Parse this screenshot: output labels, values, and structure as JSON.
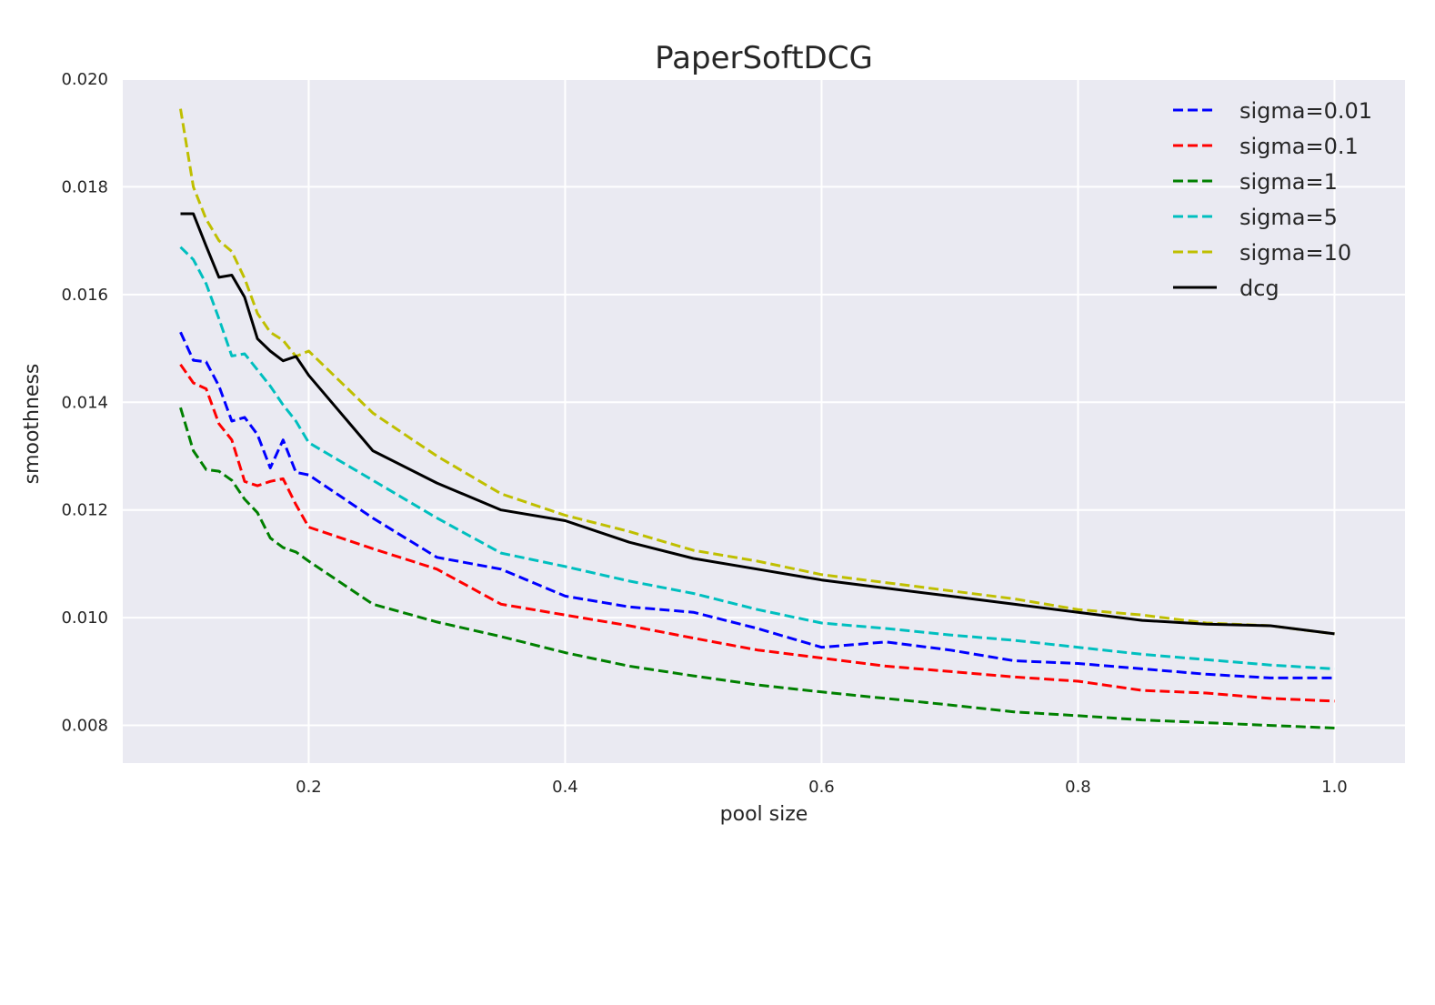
{
  "chart_data": {
    "type": "line",
    "title": "PaperSoftDCG",
    "xlabel": "pool size",
    "ylabel": "smoothness",
    "xlim": [
      0.055,
      1.055
    ],
    "ylim": [
      0.0073,
      0.02
    ],
    "xticks": [
      0.2,
      0.4,
      0.6,
      0.8,
      1.0
    ],
    "xtick_labels": [
      "0.2",
      "0.4",
      "0.6",
      "0.8",
      "1.0"
    ],
    "yticks": [
      0.008,
      0.01,
      0.012,
      0.014,
      0.016,
      0.018,
      0.02
    ],
    "ytick_labels": [
      "0.008",
      "0.010",
      "0.012",
      "0.014",
      "0.016",
      "0.018",
      "0.020"
    ],
    "grid": true,
    "background": "#eaeaf2",
    "legend_position": "top-right",
    "x": [
      0.1,
      0.11,
      0.12,
      0.13,
      0.14,
      0.15,
      0.16,
      0.17,
      0.18,
      0.19,
      0.2,
      0.25,
      0.3,
      0.35,
      0.4,
      0.45,
      0.5,
      0.55,
      0.6,
      0.65,
      0.7,
      0.75,
      0.8,
      0.85,
      0.9,
      0.95,
      1.0
    ],
    "series": [
      {
        "name": "sigma=0.01",
        "color": "#0000ff",
        "style": "dashed",
        "values": [
          0.0153,
          0.01478,
          0.01475,
          0.0143,
          0.01365,
          0.01372,
          0.0134,
          0.01278,
          0.0133,
          0.0127,
          0.01265,
          0.01185,
          0.01112,
          0.0109,
          0.0104,
          0.0102,
          0.0101,
          0.0098,
          0.00945,
          0.00955,
          0.0094,
          0.0092,
          0.00915,
          0.00905,
          0.00895,
          0.00888,
          0.00888
        ]
      },
      {
        "name": "sigma=0.1",
        "color": "#ff0000",
        "style": "dashed",
        "values": [
          0.0147,
          0.01436,
          0.01425,
          0.0136,
          0.0133,
          0.01253,
          0.01245,
          0.01253,
          0.01258,
          0.0121,
          0.01168,
          0.01128,
          0.0109,
          0.01025,
          0.01005,
          0.00985,
          0.00962,
          0.0094,
          0.00925,
          0.0091,
          0.009,
          0.0089,
          0.00882,
          0.00865,
          0.0086,
          0.0085,
          0.00845
        ]
      },
      {
        "name": "sigma=1",
        "color": "#008000",
        "style": "dashed",
        "values": [
          0.0139,
          0.0131,
          0.01275,
          0.01272,
          0.01255,
          0.0122,
          0.01195,
          0.01148,
          0.0113,
          0.01122,
          0.01105,
          0.01025,
          0.00992,
          0.00965,
          0.00935,
          0.0091,
          0.00892,
          0.00875,
          0.00862,
          0.0085,
          0.00838,
          0.00825,
          0.00818,
          0.0081,
          0.00805,
          0.008,
          0.00795
        ]
      },
      {
        "name": "sigma=5",
        "color": "#00bfbf",
        "style": "dashed",
        "values": [
          0.01688,
          0.01665,
          0.0162,
          0.01555,
          0.01486,
          0.0149,
          0.0146,
          0.0143,
          0.01395,
          0.01365,
          0.01325,
          0.01255,
          0.01185,
          0.0112,
          0.01095,
          0.01068,
          0.01045,
          0.01015,
          0.0099,
          0.0098,
          0.00968,
          0.00958,
          0.00945,
          0.00932,
          0.00922,
          0.00912,
          0.00905
        ]
      },
      {
        "name": "sigma=10",
        "color": "#bfbf00",
        "style": "dashed",
        "values": [
          0.01945,
          0.018,
          0.0174,
          0.017,
          0.0168,
          0.0163,
          0.01565,
          0.0153,
          0.01515,
          0.01485,
          0.01495,
          0.0138,
          0.013,
          0.0123,
          0.0119,
          0.0116,
          0.01125,
          0.01105,
          0.0108,
          0.01065,
          0.0105,
          0.01035,
          0.01015,
          0.01005,
          0.0099,
          0.00985,
          0.0097
        ]
      },
      {
        "name": "dcg",
        "color": "#000000",
        "style": "solid",
        "values": [
          0.0175,
          0.0175,
          0.0169,
          0.01632,
          0.01636,
          0.01595,
          0.01518,
          0.01495,
          0.01477,
          0.01485,
          0.0145,
          0.0131,
          0.0125,
          0.012,
          0.0118,
          0.0114,
          0.0111,
          0.0109,
          0.0107,
          0.01055,
          0.0104,
          0.01025,
          0.0101,
          0.00995,
          0.00988,
          0.00985,
          0.0097
        ]
      }
    ]
  }
}
